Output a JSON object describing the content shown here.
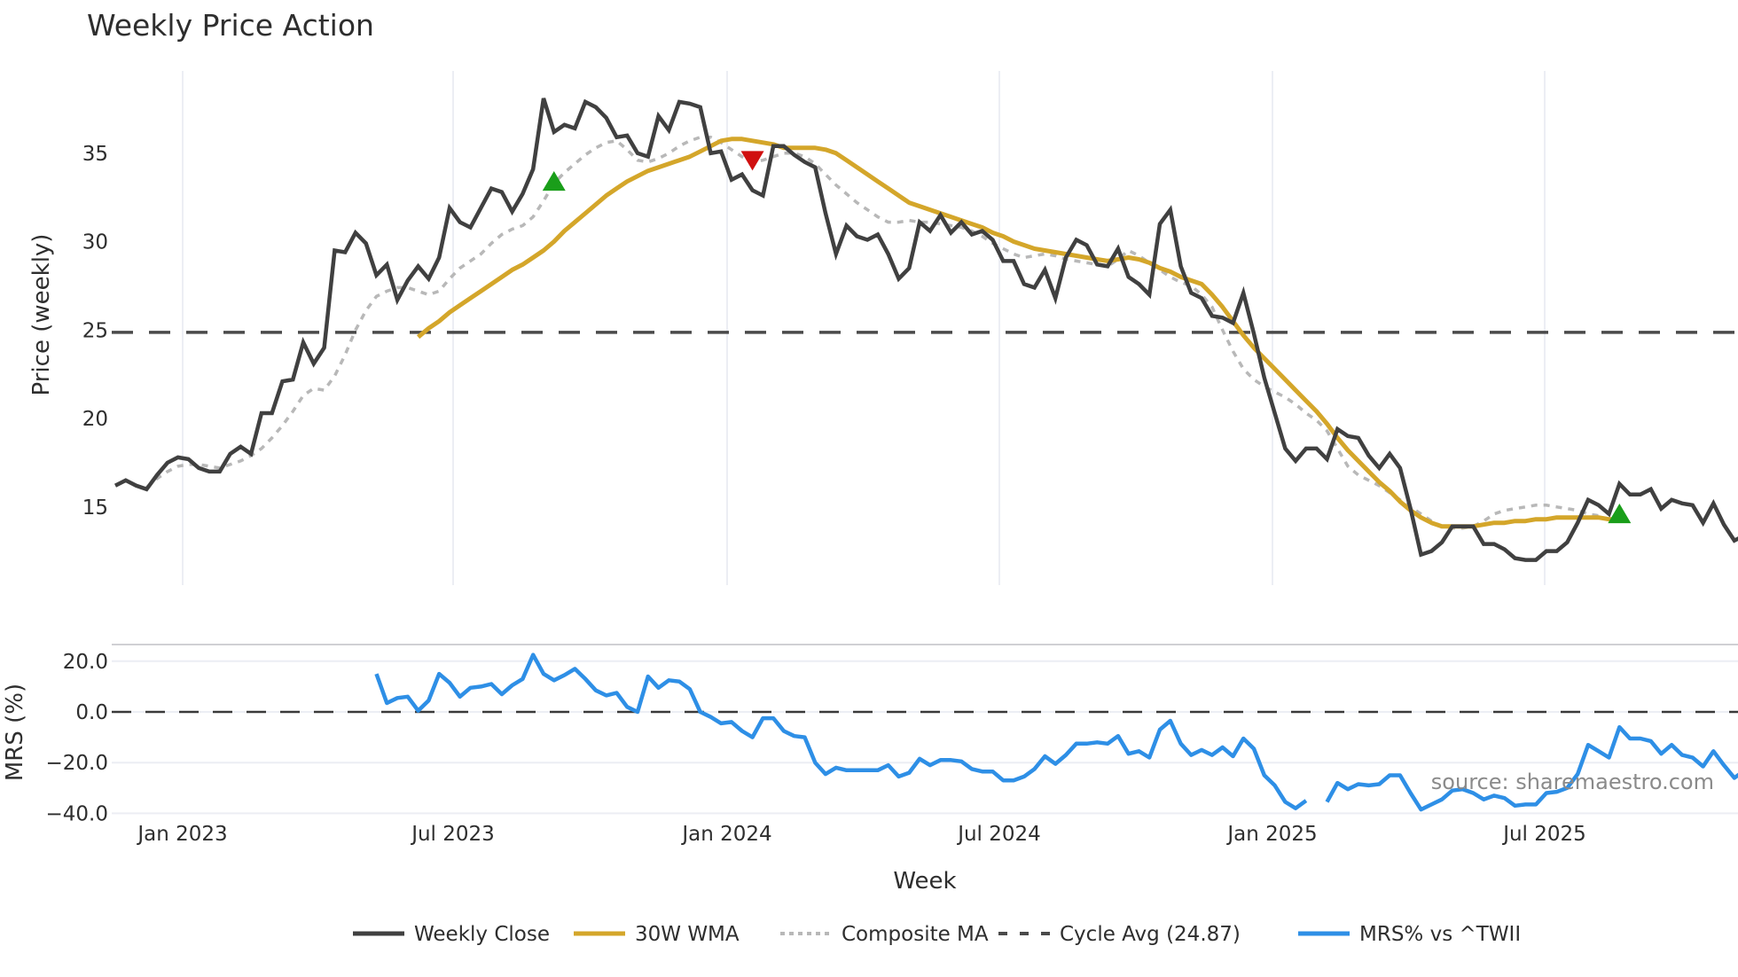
{
  "chart": {
    "title": "Weekly Price Action",
    "x_axis_title": "Week",
    "price_axis_title": "Price (weekly)",
    "mrs_axis_title": "MRS (%)",
    "source_label": "source: sharemaestro.com",
    "colors": {
      "weekly_close": "#404040",
      "wma30": "#d4a62a",
      "composite_ma": "#b8b8b8",
      "cycle_avg": "#4a4a4a",
      "mrs": "#2e8fe6",
      "buy_signal": "#1a9e1a",
      "sell_signal": "#d01010",
      "grid": "#eceef4"
    },
    "legend": [
      {
        "label": "Weekly Close",
        "style": "solid-dark"
      },
      {
        "label": "30W WMA",
        "style": "solid-gold"
      },
      {
        "label": "Composite MA",
        "style": "dotted-gray"
      },
      {
        "label": "Cycle Avg (24.87)",
        "style": "dashed-dark"
      },
      {
        "label": "MRS% vs ^TWII",
        "style": "solid-blue"
      }
    ]
  },
  "chart_data": [
    {
      "type": "line",
      "title": "Weekly Price Action",
      "xlabel": "Week",
      "ylabel": "Price (weekly)",
      "x_tick_labels": [
        "Jan 2023",
        "Jul 2023",
        "Jan 2024",
        "Jul 2024",
        "Jan 2025",
        "Jul 2025"
      ],
      "y_tick_labels": [
        "15",
        "20",
        "25",
        "30",
        "35"
      ],
      "ylim": [
        10.5,
        38.8
      ],
      "grid": true,
      "legend_position": "bottom",
      "start_week": "2022-11-28",
      "series": [
        {
          "name": "Weekly Close",
          "start_index": 0,
          "values": [
            16.2,
            16.5,
            16.2,
            16.0,
            16.8,
            17.5,
            17.8,
            17.7,
            17.2,
            17.0,
            17.0,
            18.0,
            18.4,
            18.0,
            20.3,
            20.3,
            22.1,
            22.2,
            24.3,
            23.1,
            24.0,
            29.5,
            29.4,
            30.5,
            29.9,
            28.1,
            28.7,
            26.7,
            27.8,
            28.6,
            27.9,
            29.1,
            31.9,
            31.1,
            30.8,
            31.9,
            33.0,
            32.8,
            31.7,
            32.7,
            34.1,
            38.1,
            36.2,
            36.6,
            36.4,
            37.9,
            37.6,
            37.0,
            35.9,
            36.0,
            35.0,
            34.8,
            37.1,
            36.3,
            37.9,
            37.8,
            37.6,
            35.0,
            35.1,
            33.5,
            33.8,
            32.9,
            32.6,
            35.4,
            35.4,
            34.9,
            34.5,
            34.2,
            31.6,
            29.3,
            30.9,
            30.3,
            30.1,
            30.4,
            29.3,
            27.9,
            28.5,
            31.1,
            30.6,
            31.5,
            30.5,
            31.1,
            30.4,
            30.6,
            30.1,
            28.9,
            28.9,
            27.6,
            27.4,
            28.4,
            26.8,
            29.1,
            30.1,
            29.8,
            28.7,
            28.6,
            29.6,
            28.0,
            27.6,
            27.0,
            31.0,
            31.8,
            28.6,
            27.1,
            26.8,
            25.8,
            25.7,
            25.4,
            27.1,
            24.8,
            22.3,
            20.3,
            18.3,
            17.6,
            18.3,
            18.3,
            17.7,
            19.4,
            19.0,
            18.9,
            17.9,
            17.2,
            18.0,
            17.2,
            14.9,
            12.3,
            12.5,
            13.0,
            13.9,
            13.9,
            13.9,
            12.9,
            12.9,
            12.6,
            12.1,
            12.0,
            12.0,
            12.5,
            12.5,
            13.0,
            14.1,
            15.4,
            15.1,
            14.6,
            16.3,
            15.7,
            15.7,
            16.0,
            14.9,
            15.4,
            15.2,
            15.1,
            14.1,
            15.2,
            14.0,
            13.1,
            13.4
          ]
        },
        {
          "name": "30W WMA",
          "start_index": 29,
          "values": [
            24.6,
            25.1,
            25.5,
            26.0,
            26.4,
            26.8,
            27.2,
            27.6,
            28.0,
            28.4,
            28.7,
            29.1,
            29.5,
            30.0,
            30.6,
            31.1,
            31.6,
            32.1,
            32.6,
            33.0,
            33.4,
            33.7,
            34.0,
            34.2,
            34.4,
            34.6,
            34.8,
            35.1,
            35.4,
            35.7,
            35.8,
            35.8,
            35.7,
            35.6,
            35.5,
            35.3,
            35.3,
            35.3,
            35.3,
            35.2,
            35.0,
            34.6,
            34.2,
            33.8,
            33.4,
            33.0,
            32.6,
            32.2,
            32.0,
            31.8,
            31.6,
            31.4,
            31.2,
            31.0,
            30.8,
            30.5,
            30.3,
            30.0,
            29.8,
            29.6,
            29.5,
            29.4,
            29.3,
            29.2,
            29.1,
            29.0,
            28.9,
            29.0,
            29.1,
            29.0,
            28.8,
            28.5,
            28.3,
            28.0,
            27.8,
            27.6,
            27.0,
            26.3,
            25.5,
            24.7,
            24.0,
            23.4,
            22.8,
            22.2,
            21.6,
            21.0,
            20.4,
            19.7,
            18.9,
            18.2,
            17.6,
            17.0,
            16.4,
            15.9,
            15.3,
            14.8,
            14.4,
            14.1,
            13.9,
            13.9,
            13.9,
            13.9,
            14.0,
            14.1,
            14.1,
            14.2,
            14.2,
            14.3,
            14.3,
            14.4,
            14.4,
            14.4,
            14.4,
            14.4,
            14.3,
            14.3
          ]
        },
        {
          "name": "Composite MA",
          "start_index": 3,
          "values": [
            16.1,
            16.6,
            17.0,
            17.3,
            17.4,
            17.4,
            17.3,
            17.2,
            17.4,
            17.6,
            17.9,
            18.3,
            18.9,
            19.6,
            20.4,
            21.3,
            21.7,
            21.6,
            22.4,
            23.6,
            25.0,
            26.1,
            26.9,
            27.2,
            27.4,
            27.4,
            27.2,
            27.0,
            27.2,
            27.9,
            28.5,
            28.9,
            29.3,
            29.9,
            30.4,
            30.7,
            30.9,
            31.4,
            32.3,
            33.3,
            33.9,
            34.4,
            34.9,
            35.3,
            35.6,
            35.7,
            35.2,
            34.6,
            34.5,
            34.7,
            35.0,
            35.4,
            35.7,
            35.9,
            35.9,
            35.6,
            35.2,
            34.8,
            34.5,
            34.6,
            34.8,
            35.0,
            35.0,
            34.8,
            34.4,
            33.8,
            33.2,
            32.7,
            32.2,
            31.8,
            31.4,
            31.1,
            31.1,
            31.2,
            31.1,
            31.1,
            31.0,
            30.9,
            30.8,
            30.6,
            30.3,
            29.9,
            29.6,
            29.3,
            29.1,
            29.2,
            29.3,
            29.2,
            29.0,
            28.9,
            28.8,
            28.7,
            28.6,
            29.0,
            29.5,
            29.2,
            28.8,
            28.4,
            28.0,
            27.7,
            27.5,
            27.0,
            26.3,
            25.0,
            23.8,
            22.8,
            22.2,
            21.8,
            21.5,
            21.2,
            20.8,
            20.3,
            19.9,
            19.3,
            18.3,
            17.3,
            16.8,
            16.5,
            16.2,
            15.8,
            15.4,
            15.0,
            14.6,
            14.2,
            13.9,
            13.8,
            13.8,
            13.9,
            14.2,
            14.6,
            14.8,
            14.9,
            15.0,
            15.1,
            15.1,
            15.0,
            14.9,
            14.8,
            14.6,
            14.5
          ]
        },
        {
          "name": "Cycle Avg (24.87)",
          "constant": 24.87
        }
      ],
      "markers": [
        {
          "type": "buy",
          "shape": "triangle-up",
          "week_index": 42,
          "value": 33.4
        },
        {
          "type": "sell",
          "shape": "triangle-down",
          "week_index": 61,
          "value": 34.6
        },
        {
          "type": "buy",
          "shape": "triangle-up",
          "week_index": 144,
          "value": 14.6
        }
      ]
    },
    {
      "type": "line",
      "title": "",
      "xlabel": "Week",
      "ylabel": "MRS (%)",
      "x_tick_labels": [
        "Jan 2023",
        "Jul 2023",
        "Jan 2024",
        "Jul 2024",
        "Jan 2025",
        "Jul 2025"
      ],
      "y_tick_labels": [
        "20.0",
        "0.0",
        "−20.0",
        "−40.0"
      ],
      "ylim": [
        -40,
        27
      ],
      "grid": true,
      "zero_line": "dashed",
      "series": [
        {
          "name": "MRS% vs ^TWII",
          "start_index": 25,
          "values": [
            15,
            3.5,
            5.5,
            6,
            0.5,
            4.5,
            15,
            11.5,
            6,
            9.5,
            10,
            11,
            7,
            10.5,
            13,
            22.5,
            15,
            12.5,
            14.5,
            17,
            13,
            8.5,
            6.5,
            7.5,
            2,
            0,
            14,
            9.5,
            12.5,
            12,
            9,
            0,
            -2,
            -4.5,
            -4,
            -7.5,
            -10,
            -2.5,
            -2.5,
            -7.5,
            -9.5,
            -10,
            -20,
            -24.5,
            -22,
            -23,
            -23,
            -23,
            -23,
            -21,
            -25.5,
            -24,
            -18.5,
            -21,
            -19,
            -19,
            -19.5,
            -22.5,
            -23.5,
            -23.5,
            -27,
            -27,
            -25.5,
            -22.5,
            -17.5,
            -20.5,
            -17,
            -12.5,
            -12.5,
            -12,
            -12.5,
            -9.5,
            -16.5,
            -15.5,
            -18,
            -7,
            -3.5,
            -12.5,
            -17,
            -15,
            -17,
            -14,
            -17.5,
            -10.5,
            -14.5,
            -25,
            -29,
            -35.5,
            -38,
            -35,
            null,
            -35.5,
            -28,
            -30.5,
            -28.5,
            -29,
            -28.5,
            -25,
            -25,
            -32,
            -38.5,
            -36.5,
            -34.5,
            -31,
            -30.5,
            -32,
            -34.5,
            -33,
            -34,
            -37,
            -36.5,
            -36.5,
            -32,
            -31.5,
            -30,
            -24.5,
            -13,
            -15.5,
            -18,
            -6,
            -10.5,
            -10.5,
            -11.5,
            -16.5,
            -13,
            -17,
            -18,
            -21.5,
            -15.5,
            -21,
            -26,
            -23
          ]
        }
      ],
      "annotation": "source: sharemaestro.com"
    }
  ]
}
